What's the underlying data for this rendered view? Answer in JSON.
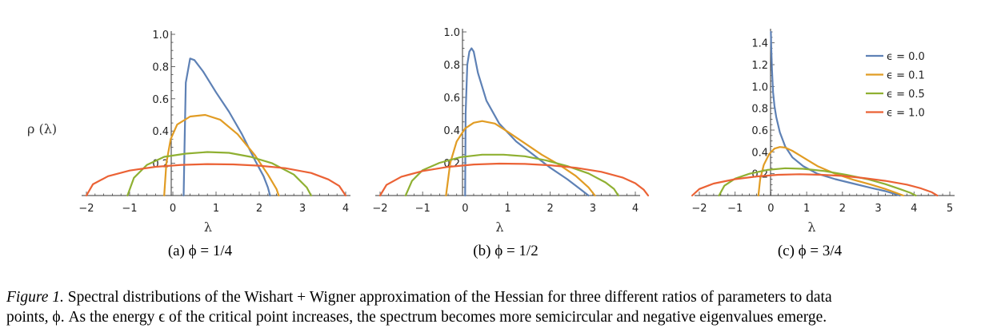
{
  "ylabel": "ρ (λ)",
  "xlabel": "λ",
  "legend": [
    {
      "label": "ϵ = 0.0",
      "color": "#5e81b5"
    },
    {
      "label": "ϵ = 0.1",
      "color": "#e19c24"
    },
    {
      "label": "ϵ = 0.5",
      "color": "#8fb032"
    },
    {
      "label": "ϵ = 1.0",
      "color": "#eb6235"
    }
  ],
  "caption": {
    "lead": "Figure 1.",
    "line1": " Spectral distributions of the Wishart + Wigner approximation of the Hessian for three different ratios of parameters to data",
    "line2": "points, ϕ. As the energy ϵ of the critical point increases, the spectrum becomes more semicircular and negative eigenvalues emerge."
  },
  "chart_data": [
    {
      "type": "line",
      "subcaption": "(a) ϕ = 1/4",
      "xlabel": "λ",
      "ylabel": "ρ (λ)",
      "xlim": [
        -2,
        4
      ],
      "ylim": [
        0,
        1.0
      ],
      "xticks": [
        "-2",
        "-1",
        "0",
        "1",
        "2",
        "3",
        "4"
      ],
      "yticks": [
        "0.2",
        "0.4",
        "0.6",
        "0.8",
        "1.0"
      ],
      "series": [
        {
          "name": "ϵ = 0.0",
          "x": [
            0.25,
            0.27,
            0.3,
            0.4,
            0.5,
            0.7,
            1.0,
            1.3,
            1.6,
            1.9,
            2.1,
            2.2,
            2.25
          ],
          "y": [
            0,
            0.3,
            0.7,
            0.85,
            0.84,
            0.77,
            0.64,
            0.52,
            0.38,
            0.22,
            0.12,
            0.05,
            0
          ]
        },
        {
          "name": "ϵ = 0.1",
          "x": [
            -0.2,
            -0.15,
            -0.05,
            0.1,
            0.4,
            0.75,
            1.1,
            1.5,
            1.9,
            2.2,
            2.4,
            2.45
          ],
          "y": [
            0,
            0.2,
            0.35,
            0.44,
            0.49,
            0.5,
            0.47,
            0.38,
            0.25,
            0.13,
            0.04,
            0
          ]
        },
        {
          "name": "ϵ = 0.5",
          "x": [
            -1.05,
            -0.9,
            -0.6,
            -0.2,
            0.3,
            0.8,
            1.3,
            1.8,
            2.3,
            2.8,
            3.1,
            3.2
          ],
          "y": [
            0,
            0.11,
            0.19,
            0.24,
            0.26,
            0.27,
            0.265,
            0.24,
            0.2,
            0.13,
            0.05,
            0
          ]
        },
        {
          "name": "ϵ = 1.0",
          "x": [
            -2.0,
            -1.85,
            -1.5,
            -1.0,
            -0.4,
            0.2,
            0.8,
            1.4,
            2.0,
            2.6,
            3.2,
            3.6,
            3.85,
            4.0
          ],
          "y": [
            0,
            0.07,
            0.12,
            0.155,
            0.178,
            0.19,
            0.195,
            0.193,
            0.185,
            0.17,
            0.14,
            0.1,
            0.06,
            0
          ]
        }
      ]
    },
    {
      "type": "line",
      "subcaption": "(b) ϕ = 1/2",
      "xlabel": "λ",
      "ylabel": "ρ (λ)",
      "xlim": [
        -2,
        4
      ],
      "ylim": [
        0,
        1.0
      ],
      "xticks": [
        "-2",
        "-1",
        "0",
        "1",
        "2",
        "3",
        "4"
      ],
      "yticks": [
        "0.2",
        "0.4",
        "0.6",
        "0.8",
        "1.0"
      ],
      "series": [
        {
          "name": "ϵ = 0.0",
          "x": [
            0.0,
            0.01,
            0.05,
            0.1,
            0.15,
            0.2,
            0.3,
            0.5,
            0.8,
            1.2,
            1.6,
            2.0,
            2.4,
            2.7,
            2.9
          ],
          "y": [
            0,
            0.5,
            0.8,
            0.88,
            0.9,
            0.88,
            0.75,
            0.58,
            0.44,
            0.33,
            0.25,
            0.17,
            0.1,
            0.04,
            0
          ]
        },
        {
          "name": "ϵ = 0.1",
          "x": [
            -0.45,
            -0.35,
            -0.2,
            0.0,
            0.2,
            0.4,
            0.7,
            1.0,
            1.4,
            1.8,
            2.2,
            2.6,
            2.9,
            3.05
          ],
          "y": [
            0,
            0.2,
            0.33,
            0.41,
            0.445,
            0.455,
            0.44,
            0.39,
            0.32,
            0.25,
            0.19,
            0.12,
            0.05,
            0
          ]
        },
        {
          "name": "ϵ = 0.5",
          "x": [
            -1.4,
            -1.25,
            -1.0,
            -0.6,
            -0.1,
            0.4,
            0.9,
            1.4,
            1.9,
            2.4,
            2.9,
            3.3,
            3.5,
            3.6
          ],
          "y": [
            0,
            0.09,
            0.155,
            0.2,
            0.235,
            0.25,
            0.25,
            0.24,
            0.215,
            0.18,
            0.135,
            0.08,
            0.04,
            0
          ]
        },
        {
          "name": "ϵ = 1.0",
          "x": [
            -2.0,
            -1.85,
            -1.5,
            -1.0,
            -0.4,
            0.2,
            0.8,
            1.4,
            2.0,
            2.6,
            3.2,
            3.7,
            4.0,
            4.2,
            4.3
          ],
          "y": [
            0,
            0.065,
            0.115,
            0.15,
            0.175,
            0.19,
            0.195,
            0.193,
            0.185,
            0.17,
            0.145,
            0.11,
            0.075,
            0.035,
            0
          ]
        }
      ]
    },
    {
      "type": "line",
      "subcaption": "(c) ϕ = 3/4",
      "xlabel": "λ",
      "ylabel": "ρ (λ)",
      "xlim": [
        -2,
        5
      ],
      "ylim": [
        0,
        1.5
      ],
      "xticks": [
        "-2",
        "-1",
        "0",
        "1",
        "2",
        "3",
        "4",
        "5"
      ],
      "yticks": [
        "0.2",
        "0.4",
        "0.6",
        "0.8",
        "1.0",
        "1.2",
        "1.4"
      ],
      "series": [
        {
          "name": "ϵ = 0.0",
          "x": [
            0.0,
            0.01,
            0.03,
            0.06,
            0.1,
            0.15,
            0.25,
            0.4,
            0.6,
            0.9,
            1.3,
            1.8,
            2.3,
            2.8,
            3.2,
            3.5,
            3.6
          ],
          "y": [
            1.5,
            1.35,
            1.15,
            0.95,
            0.82,
            0.72,
            0.58,
            0.45,
            0.35,
            0.27,
            0.2,
            0.15,
            0.11,
            0.07,
            0.04,
            0.01,
            0
          ]
        },
        {
          "name": "ϵ = 0.1",
          "x": [
            -0.35,
            -0.3,
            -0.2,
            -0.05,
            0.1,
            0.25,
            0.4,
            0.6,
            0.9,
            1.3,
            1.8,
            2.3,
            2.8,
            3.2,
            3.5,
            3.7
          ],
          "y": [
            0,
            0.15,
            0.28,
            0.38,
            0.43,
            0.445,
            0.44,
            0.41,
            0.35,
            0.27,
            0.2,
            0.145,
            0.1,
            0.06,
            0.025,
            0
          ]
        },
        {
          "name": "ϵ = 0.5",
          "x": [
            -1.45,
            -1.3,
            -1.0,
            -0.6,
            -0.1,
            0.4,
            0.9,
            1.5,
            2.1,
            2.7,
            3.2,
            3.6,
            3.9,
            4.05
          ],
          "y": [
            0,
            0.09,
            0.155,
            0.2,
            0.235,
            0.25,
            0.245,
            0.225,
            0.19,
            0.15,
            0.105,
            0.06,
            0.025,
            0
          ]
        },
        {
          "name": "ϵ = 1.0",
          "x": [
            -2.2,
            -2.0,
            -1.6,
            -1.0,
            -0.4,
            0.2,
            0.8,
            1.4,
            2.0,
            2.6,
            3.2,
            3.8,
            4.2,
            4.5,
            4.65
          ],
          "y": [
            0,
            0.06,
            0.11,
            0.15,
            0.175,
            0.19,
            0.195,
            0.19,
            0.18,
            0.16,
            0.135,
            0.1,
            0.065,
            0.03,
            0
          ]
        }
      ]
    }
  ]
}
